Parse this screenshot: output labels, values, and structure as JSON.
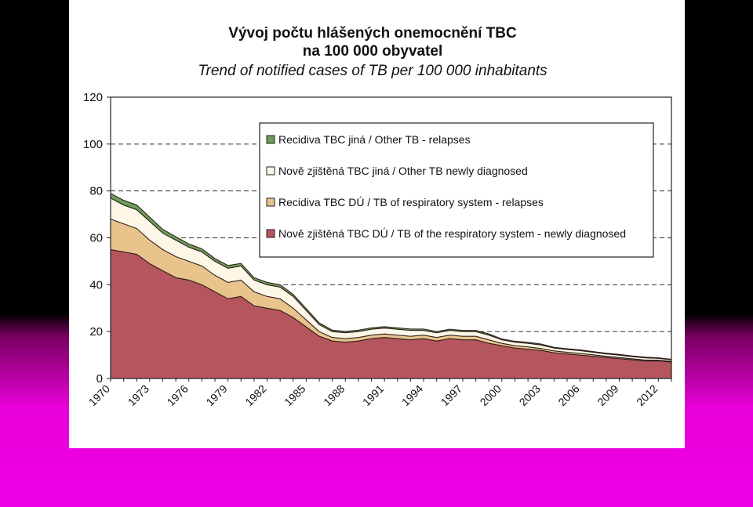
{
  "chart_data": {
    "type": "area",
    "stacked": true,
    "title_lines": [
      "Vývoj počtu hlášených onemocnění TBC",
      "na 100 000 obyvatel"
    ],
    "subtitle": "Trend of notified cases of TB per 100 000 inhabitants",
    "xlabel": "",
    "ylabel": "",
    "ylim": [
      0,
      120
    ],
    "y_ticks": [
      "0",
      "20",
      "40",
      "60",
      "80",
      "100",
      "120"
    ],
    "x_ticks": [
      "1970",
      "1973",
      "1976",
      "1979",
      "1982",
      "1985",
      "1988",
      "1991",
      "1994",
      "1997",
      "2000",
      "2003",
      "2006",
      "2009",
      "2012"
    ],
    "x": [
      1970,
      1971,
      1972,
      1973,
      1974,
      1975,
      1976,
      1977,
      1978,
      1979,
      1980,
      1981,
      1982,
      1983,
      1984,
      1985,
      1986,
      1987,
      1988,
      1989,
      1990,
      1991,
      1992,
      1993,
      1994,
      1995,
      1996,
      1997,
      1998,
      1999,
      2000,
      2001,
      2002,
      2003,
      2004,
      2005,
      2006,
      2007,
      2008,
      2009,
      2010,
      2011,
      2012,
      2013
    ],
    "grid": "dashed horizontal lines at 20, 40, 60, 80, 100",
    "legend_position": "top-right",
    "series": [
      {
        "name": "Nově zjištěná TBC DÚ / TB of the respiratory system - newly diagnosed",
        "color": "#b5555d",
        "values": [
          55,
          54,
          53,
          49,
          46,
          43,
          42,
          40,
          37,
          34,
          35,
          31,
          30,
          29,
          26,
          22,
          18,
          16,
          15.5,
          16,
          17,
          17.5,
          17,
          16.5,
          17,
          16,
          17,
          16.5,
          16.5,
          15,
          14,
          13,
          12.5,
          12,
          11,
          10.5,
          10,
          9.5,
          9,
          8.5,
          8,
          7.5,
          7.5,
          7
        ]
      },
      {
        "name": "Recidiva TBC DÚ / TB of respiratory system - relapses",
        "color": "#e8c48c",
        "values": [
          13,
          12,
          11,
          10,
          9,
          9,
          8,
          8,
          7,
          7,
          7,
          6,
          5,
          5,
          4,
          3,
          2,
          1.5,
          1.5,
          1.5,
          1.5,
          1.5,
          1.5,
          1.5,
          1.5,
          1.5,
          1.5,
          1.5,
          1.5,
          1.5,
          1,
          1,
          1,
          0.8,
          0.8,
          0.7,
          0.7,
          0.6,
          0.5,
          0.5,
          0.4,
          0.4,
          0.3,
          0.3
        ]
      },
      {
        "name": "Nově zjištěná TBC jiná / Other TB newly diagnosed",
        "color": "#fcf7e6",
        "values": [
          9,
          8,
          8,
          8,
          7,
          7,
          6,
          6,
          6,
          6,
          6,
          5,
          5,
          5,
          5,
          4,
          3,
          2.5,
          2.5,
          2.5,
          2.5,
          2.5,
          2.5,
          2.5,
          2,
          2,
          2,
          2,
          2,
          2,
          1.5,
          1.5,
          1.5,
          1.5,
          1.2,
          1.2,
          1.2,
          1.1,
          1,
          1,
          0.9,
          0.9,
          0.8,
          0.7
        ]
      },
      {
        "name": "Recidiva TBC jiná / Other TB - relapses",
        "color": "#6d9e58",
        "values": [
          2,
          2,
          2,
          1.8,
          1.6,
          1.5,
          1.4,
          1.3,
          1.2,
          1.2,
          1.1,
          1,
          1,
          1,
          0.9,
          0.8,
          0.7,
          0.6,
          0.6,
          0.6,
          0.6,
          0.6,
          0.6,
          0.6,
          0.6,
          0.5,
          0.5,
          0.5,
          0.5,
          0.5,
          0.4,
          0.4,
          0.4,
          0.4,
          0.3,
          0.3,
          0.3,
          0.3,
          0.3,
          0.3,
          0.3,
          0.3,
          0.2,
          0.2
        ]
      }
    ],
    "legend_order": [
      3,
      2,
      1,
      0
    ]
  }
}
